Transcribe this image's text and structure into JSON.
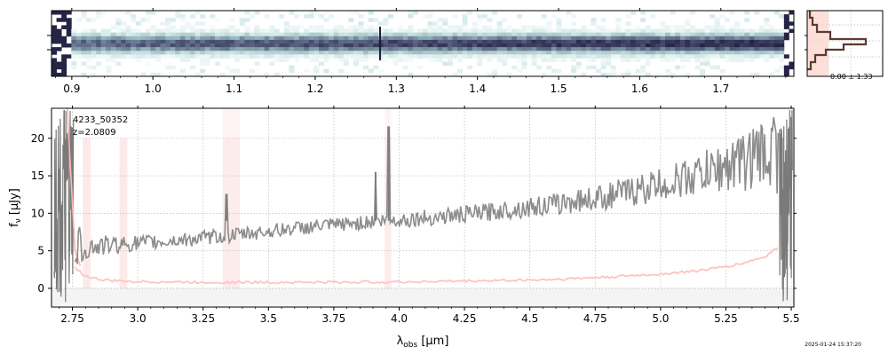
{
  "chart_data": [
    {
      "type": "heatmap",
      "panel": "2d-spectrum",
      "xlim": [
        0.875,
        1.79
      ],
      "xticks": [
        0.9,
        1.0,
        1.1,
        1.2,
        1.3,
        1.4,
        1.5,
        1.6,
        1.7
      ],
      "xtick_labels": [
        "0.9",
        "1.0",
        "1.1",
        "1.2",
        "1.3",
        "1.4",
        "1.5",
        "1.6",
        "1.7"
      ],
      "vertical_lines": [
        1.28
      ],
      "colormap": "bone-teal (white → dark navy)",
      "grid": false
    },
    {
      "type": "line",
      "panel": "profile",
      "annotation": "0.00 ± 1.33",
      "grid": true
    },
    {
      "type": "line",
      "panel": "1d-spectrum",
      "xlabel": "λobs [μm]",
      "ylabel": "fν [μJy]",
      "xlim": [
        2.67,
        5.51
      ],
      "ylim": [
        -2.5,
        24
      ],
      "xticks": [
        2.75,
        3.0,
        3.25,
        3.5,
        3.75,
        4.0,
        4.25,
        4.5,
        4.75,
        5.0,
        5.25,
        5.5
      ],
      "xtick_labels": [
        "2.75",
        "3.0",
        "3.25",
        "3.5",
        "3.75",
        "4.0",
        "4.25",
        "4.5",
        "4.75",
        "5.0",
        "5.25",
        "5.5"
      ],
      "yticks": [
        0,
        5,
        10,
        15,
        20
      ],
      "ytick_labels": [
        "0",
        "5",
        "10",
        "15",
        "20"
      ],
      "grid": true,
      "annotation_id": "4233_50352",
      "annotation_z": "z=2.0809",
      "series": [
        {
          "color": "#8c8c8c",
          "x": [
            2.76,
            2.8,
            2.85,
            2.9,
            2.95,
            3.0,
            3.05,
            3.1,
            3.15,
            3.2,
            3.25,
            3.3,
            3.35,
            3.4,
            3.45,
            3.5,
            3.55,
            3.6,
            3.65,
            3.7,
            3.75,
            3.8,
            3.85,
            3.9,
            3.95,
            4.0,
            4.05,
            4.1,
            4.15,
            4.2,
            4.25,
            4.3,
            4.35,
            4.4,
            4.45,
            4.5,
            4.55,
            4.6,
            4.65,
            4.7,
            4.75,
            4.8,
            4.85,
            4.9,
            4.95,
            5.0,
            5.05,
            5.1,
            5.15,
            5.2,
            5.25,
            5.3,
            5.35,
            5.4,
            5.45
          ],
          "y": [
            5.5,
            5.5,
            5.6,
            5.8,
            5.9,
            6.0,
            6.1,
            6.2,
            6.4,
            6.5,
            6.7,
            6.9,
            7.0,
            7.2,
            7.4,
            7.6,
            7.8,
            8.0,
            8.1,
            8.3,
            8.4,
            8.6,
            8.7,
            8.9,
            9.0,
            9.1,
            9.2,
            9.4,
            9.5,
            9.7,
            9.8,
            10.0,
            10.2,
            10.4,
            10.6,
            10.8,
            11.0,
            11.2,
            11.5,
            11.8,
            12.0,
            12.3,
            12.7,
            13.0,
            13.4,
            13.8,
            14.2,
            14.7,
            15.2,
            15.7,
            16.2,
            16.8,
            17.4,
            18.0,
            18.6
          ]
        },
        {
          "color": "#ffb3b3",
          "x": [
            2.76,
            2.8,
            2.85,
            2.9,
            3.0,
            3.1,
            3.2,
            3.3,
            3.4,
            3.5,
            3.6,
            3.7,
            3.8,
            3.9,
            4.0,
            4.1,
            4.2,
            4.3,
            4.4,
            4.5,
            4.6,
            4.7,
            4.8,
            4.9,
            5.0,
            5.1,
            5.2,
            5.3,
            5.4,
            5.45
          ],
          "y": [
            2.8,
            1.6,
            1.2,
            1.0,
            0.9,
            0.85,
            0.8,
            0.8,
            0.8,
            0.8,
            0.8,
            0.8,
            0.8,
            0.85,
            0.85,
            0.9,
            0.95,
            1.0,
            1.05,
            1.1,
            1.2,
            1.35,
            1.5,
            1.7,
            1.9,
            2.2,
            2.6,
            3.2,
            4.2,
            5.5
          ]
        }
      ],
      "emission_lines": [
        {
          "x": 3.34,
          "peak": 12.5
        },
        {
          "x": 3.91,
          "peak": 15.5
        },
        {
          "x": 3.96,
          "peak": 21.5
        }
      ],
      "shaded_bands": [
        [
          2.79,
          2.82
        ],
        [
          2.93,
          2.96
        ],
        [
          3.325,
          3.39
        ],
        [
          3.945,
          3.97
        ]
      ]
    }
  ],
  "timestamp": "2025-01-24 15:37:20"
}
